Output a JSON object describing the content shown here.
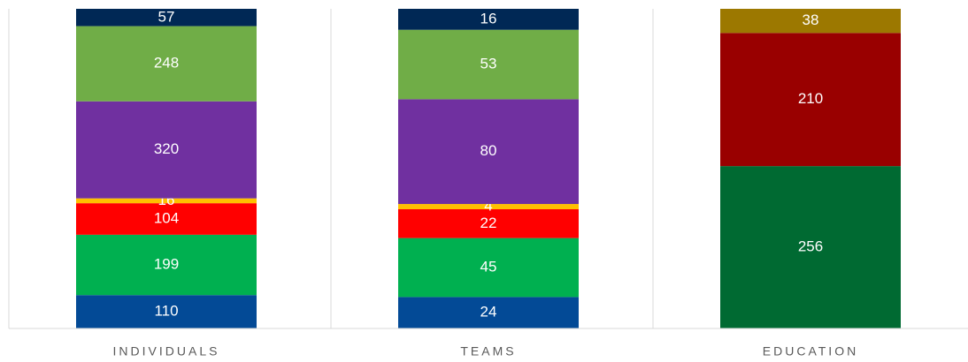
{
  "chart_data": {
    "type": "bar",
    "stack": "percent",
    "categories": [
      "INDIVIDUALS",
      "TEAMS",
      "EDUCATION"
    ],
    "series": [
      {
        "color": "#034a96",
        "values": [
          110,
          24,
          null
        ]
      },
      {
        "color": "#00b050",
        "values": [
          199,
          45,
          null
        ]
      },
      {
        "color": "#ff0000",
        "values": [
          104,
          22,
          null
        ]
      },
      {
        "color": "#ffc000",
        "values": [
          16,
          4,
          null
        ]
      },
      {
        "color": "#7030a0",
        "values": [
          320,
          80,
          null
        ]
      },
      {
        "color": "#70ad47",
        "values": [
          248,
          53,
          null
        ]
      },
      {
        "color": "#002855",
        "values": [
          57,
          16,
          null
        ]
      },
      {
        "color": "#006a32",
        "values": [
          null,
          null,
          256
        ]
      },
      {
        "color": "#990000",
        "values": [
          null,
          null,
          210
        ]
      },
      {
        "color": "#9c7800",
        "values": [
          null,
          null,
          38
        ]
      }
    ]
  }
}
